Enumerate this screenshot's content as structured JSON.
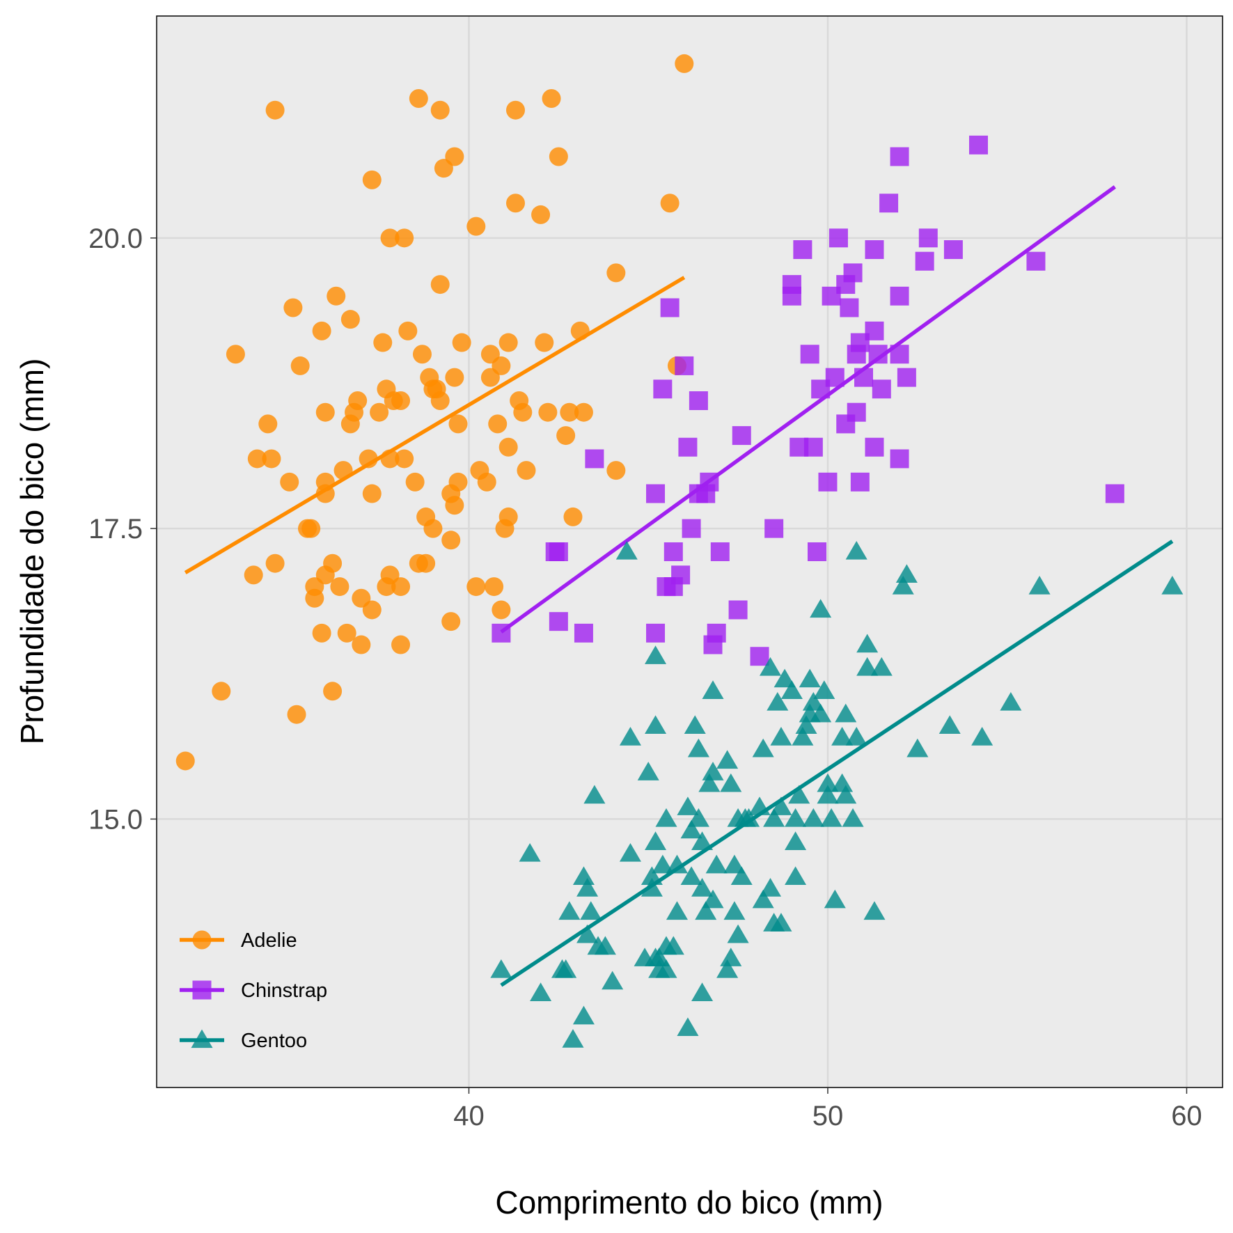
{
  "chart_data": {
    "type": "scatter",
    "title": "",
    "xlabel": "Comprimento do bico (mm)",
    "ylabel": "Profundidade do bico (mm)",
    "xlim": [
      31.3,
      61.0
    ],
    "ylim": [
      12.69,
      21.91
    ],
    "xticks": [
      40,
      50,
      60
    ],
    "xtick_labels": [
      "40",
      "50",
      "60"
    ],
    "yticks": [
      15.0,
      17.5,
      20.0
    ],
    "ytick_labels": [
      "15.0",
      "17.5",
      "20.0"
    ],
    "grid": true,
    "legend_position": "bottom-left",
    "background": "#ebebeb",
    "series": [
      {
        "name": "Adelie",
        "color": "#ff8c00",
        "marker": "circle",
        "trend": [
          [
            32.1,
            17.12
          ],
          [
            46.0,
            19.66
          ]
        ],
        "points": [
          [
            32.1,
            15.5
          ],
          [
            33.1,
            16.1
          ],
          [
            33.5,
            19.0
          ],
          [
            34.0,
            17.1
          ],
          [
            34.1,
            18.1
          ],
          [
            34.4,
            18.4
          ],
          [
            34.5,
            18.1
          ],
          [
            34.6,
            21.1
          ],
          [
            34.6,
            17.2
          ],
          [
            35.0,
            17.9
          ],
          [
            35.1,
            19.4
          ],
          [
            35.2,
            15.9
          ],
          [
            35.3,
            18.9
          ],
          [
            35.5,
            17.5
          ],
          [
            35.6,
            17.5
          ],
          [
            35.7,
            16.9
          ],
          [
            35.7,
            17.0
          ],
          [
            35.9,
            16.6
          ],
          [
            35.9,
            19.2
          ],
          [
            36.0,
            17.9
          ],
          [
            36.0,
            18.5
          ],
          [
            36.0,
            17.8
          ],
          [
            36.0,
            17.1
          ],
          [
            36.2,
            16.1
          ],
          [
            36.2,
            17.2
          ],
          [
            36.3,
            19.5
          ],
          [
            36.4,
            17.0
          ],
          [
            36.5,
            18.0
          ],
          [
            36.6,
            16.6
          ],
          [
            36.7,
            18.4
          ],
          [
            36.7,
            19.3
          ],
          [
            36.8,
            18.5
          ],
          [
            36.9,
            18.6
          ],
          [
            37.0,
            16.9
          ],
          [
            37.0,
            16.5
          ],
          [
            37.2,
            18.1
          ],
          [
            37.3,
            20.5
          ],
          [
            37.3,
            16.8
          ],
          [
            37.3,
            17.8
          ],
          [
            37.5,
            18.5
          ],
          [
            37.6,
            19.1
          ],
          [
            37.7,
            17.0
          ],
          [
            37.7,
            18.7
          ],
          [
            37.8,
            20.0
          ],
          [
            37.8,
            18.1
          ],
          [
            37.8,
            17.1
          ],
          [
            37.9,
            18.6
          ],
          [
            38.1,
            18.6
          ],
          [
            38.1,
            17.0
          ],
          [
            38.1,
            16.5
          ],
          [
            38.2,
            18.1
          ],
          [
            38.2,
            20.0
          ],
          [
            38.3,
            19.2
          ],
          [
            38.5,
            17.9
          ],
          [
            38.6,
            21.2
          ],
          [
            38.6,
            17.2
          ],
          [
            38.7,
            19.0
          ],
          [
            38.8,
            17.6
          ],
          [
            38.8,
            17.2
          ],
          [
            38.9,
            18.8
          ],
          [
            39.0,
            18.7
          ],
          [
            39.0,
            17.5
          ],
          [
            39.1,
            18.7
          ],
          [
            39.2,
            21.1
          ],
          [
            39.2,
            19.6
          ],
          [
            39.2,
            18.6
          ],
          [
            39.3,
            20.6
          ],
          [
            39.5,
            16.7
          ],
          [
            39.5,
            17.8
          ],
          [
            39.5,
            17.4
          ],
          [
            39.6,
            17.7
          ],
          [
            39.6,
            20.7
          ],
          [
            39.6,
            18.8
          ],
          [
            39.7,
            18.4
          ],
          [
            39.7,
            17.9
          ],
          [
            39.8,
            19.1
          ],
          [
            40.2,
            17.0
          ],
          [
            40.2,
            20.1
          ],
          [
            40.3,
            18.0
          ],
          [
            40.5,
            17.9
          ],
          [
            40.6,
            18.8
          ],
          [
            40.6,
            19.0
          ],
          [
            40.7,
            17.0
          ],
          [
            40.8,
            18.4
          ],
          [
            40.9,
            16.8
          ],
          [
            40.9,
            18.9
          ],
          [
            41.0,
            17.5
          ],
          [
            41.1,
            17.6
          ],
          [
            41.1,
            18.2
          ],
          [
            41.1,
            19.1
          ],
          [
            41.3,
            21.1
          ],
          [
            41.3,
            20.3
          ],
          [
            41.4,
            18.6
          ],
          [
            41.5,
            18.5
          ],
          [
            41.6,
            18.0
          ],
          [
            42.0,
            20.2
          ],
          [
            42.1,
            19.1
          ],
          [
            42.2,
            18.5
          ],
          [
            42.3,
            21.2
          ],
          [
            42.5,
            20.7
          ],
          [
            42.7,
            18.3
          ],
          [
            42.8,
            18.5
          ],
          [
            42.9,
            17.6
          ],
          [
            43.1,
            19.2
          ],
          [
            43.2,
            18.5
          ],
          [
            44.1,
            19.7
          ],
          [
            44.1,
            18.0
          ],
          [
            45.6,
            20.3
          ],
          [
            45.8,
            18.9
          ],
          [
            46.0,
            21.5
          ]
        ]
      },
      {
        "name": "Chinstrap",
        "color": "#a020f0",
        "marker": "square",
        "trend": [
          [
            40.9,
            16.61
          ],
          [
            58.0,
            20.44
          ]
        ],
        "points": [
          [
            40.9,
            16.6
          ],
          [
            42.4,
            17.3
          ],
          [
            42.5,
            16.7
          ],
          [
            42.5,
            17.3
          ],
          [
            43.2,
            16.6
          ],
          [
            43.5,
            18.1
          ],
          [
            45.2,
            17.8
          ],
          [
            45.2,
            16.6
          ],
          [
            45.4,
            18.7
          ],
          [
            45.5,
            17.0
          ],
          [
            45.6,
            19.4
          ],
          [
            45.7,
            17.0
          ],
          [
            45.7,
            17.3
          ],
          [
            45.9,
            17.1
          ],
          [
            46.0,
            18.9
          ],
          [
            46.1,
            18.2
          ],
          [
            46.2,
            17.5
          ],
          [
            46.4,
            18.6
          ],
          [
            46.4,
            17.8
          ],
          [
            46.6,
            17.8
          ],
          [
            46.7,
            17.9
          ],
          [
            46.8,
            16.5
          ],
          [
            46.9,
            16.6
          ],
          [
            47.0,
            17.3
          ],
          [
            47.5,
            16.8
          ],
          [
            47.6,
            18.3
          ],
          [
            48.1,
            16.4
          ],
          [
            48.5,
            17.5
          ],
          [
            49.0,
            19.5
          ],
          [
            49.0,
            19.6
          ],
          [
            49.2,
            18.2
          ],
          [
            49.3,
            19.9
          ],
          [
            49.5,
            19.0
          ],
          [
            49.6,
            18.2
          ],
          [
            49.7,
            17.3
          ],
          [
            49.8,
            18.7
          ],
          [
            50.1,
            19.5
          ],
          [
            50.2,
            18.8
          ],
          [
            50.3,
            20.0
          ],
          [
            50.5,
            18.4
          ],
          [
            50.6,
            19.4
          ],
          [
            50.7,
            19.7
          ],
          [
            50.8,
            19.0
          ],
          [
            50.8,
            18.5
          ],
          [
            50.9,
            17.9
          ],
          [
            51.0,
            18.8
          ],
          [
            51.3,
            19.2
          ],
          [
            51.3,
            18.2
          ],
          [
            51.4,
            19.0
          ],
          [
            51.5,
            18.7
          ],
          [
            51.7,
            20.3
          ],
          [
            52.0,
            20.7
          ],
          [
            52.0,
            18.1
          ],
          [
            52.0,
            19.0
          ],
          [
            52.2,
            18.8
          ],
          [
            52.7,
            19.8
          ],
          [
            52.8,
            20.0
          ],
          [
            53.5,
            19.9
          ],
          [
            54.2,
            20.8
          ],
          [
            55.8,
            19.8
          ],
          [
            58.0,
            17.8
          ],
          [
            50.0,
            17.9
          ],
          [
            51.3,
            19.9
          ],
          [
            50.5,
            19.6
          ],
          [
            52.0,
            19.5
          ],
          [
            50.9,
            19.1
          ]
        ]
      },
      {
        "name": "Gentoo",
        "color": "#008b8b",
        "marker": "triangle",
        "trend": [
          [
            40.9,
            13.57
          ],
          [
            59.6,
            17.39
          ]
        ],
        "points": [
          [
            40.9,
            13.7
          ],
          [
            41.7,
            14.7
          ],
          [
            42.0,
            13.5
          ],
          [
            42.6,
            13.7
          ],
          [
            42.7,
            13.7
          ],
          [
            42.8,
            14.2
          ],
          [
            42.9,
            13.1
          ],
          [
            43.2,
            14.5
          ],
          [
            43.2,
            13.3
          ],
          [
            43.3,
            14.0
          ],
          [
            43.3,
            14.4
          ],
          [
            43.4,
            14.2
          ],
          [
            43.5,
            15.2
          ],
          [
            43.6,
            13.9
          ],
          [
            43.8,
            13.9
          ],
          [
            44.0,
            13.6
          ],
          [
            44.4,
            17.3
          ],
          [
            44.5,
            14.7
          ],
          [
            44.5,
            15.7
          ],
          [
            44.9,
            13.8
          ],
          [
            45.0,
            15.4
          ],
          [
            45.1,
            14.5
          ],
          [
            45.1,
            14.4
          ],
          [
            45.2,
            13.8
          ],
          [
            45.2,
            14.8
          ],
          [
            45.2,
            15.8
          ],
          [
            45.2,
            16.4
          ],
          [
            45.3,
            13.7
          ],
          [
            45.3,
            13.8
          ],
          [
            45.4,
            14.6
          ],
          [
            45.5,
            13.7
          ],
          [
            45.5,
            15.0
          ],
          [
            45.5,
            13.9
          ],
          [
            45.7,
            13.9
          ],
          [
            45.8,
            14.6
          ],
          [
            45.8,
            14.2
          ],
          [
            46.1,
            15.1
          ],
          [
            46.1,
            13.2
          ],
          [
            46.2,
            14.5
          ],
          [
            46.2,
            14.9
          ],
          [
            46.3,
            15.8
          ],
          [
            46.4,
            15.6
          ],
          [
            46.4,
            15.0
          ],
          [
            46.5,
            14.4
          ],
          [
            46.5,
            14.8
          ],
          [
            46.5,
            13.5
          ],
          [
            46.6,
            14.2
          ],
          [
            46.7,
            15.3
          ],
          [
            46.8,
            14.3
          ],
          [
            46.8,
            15.4
          ],
          [
            46.8,
            16.1
          ],
          [
            46.9,
            14.6
          ],
          [
            47.2,
            13.7
          ],
          [
            47.2,
            15.5
          ],
          [
            47.3,
            13.8
          ],
          [
            47.3,
            15.3
          ],
          [
            47.4,
            14.6
          ],
          [
            47.4,
            14.2
          ],
          [
            47.5,
            14.0
          ],
          [
            47.5,
            15.0
          ],
          [
            47.6,
            14.5
          ],
          [
            47.7,
            15.0
          ],
          [
            47.8,
            15.0
          ],
          [
            48.1,
            15.1
          ],
          [
            48.2,
            14.3
          ],
          [
            48.2,
            15.6
          ],
          [
            48.4,
            14.4
          ],
          [
            48.4,
            16.3
          ],
          [
            48.5,
            15.0
          ],
          [
            48.5,
            14.1
          ],
          [
            48.6,
            16.0
          ],
          [
            48.7,
            14.1
          ],
          [
            48.7,
            15.1
          ],
          [
            48.7,
            15.7
          ],
          [
            48.8,
            16.2
          ],
          [
            49.0,
            16.1
          ],
          [
            49.1,
            14.8
          ],
          [
            49.1,
            14.5
          ],
          [
            49.1,
            15.0
          ],
          [
            49.2,
            15.2
          ],
          [
            49.3,
            15.7
          ],
          [
            49.4,
            15.8
          ],
          [
            49.5,
            15.9
          ],
          [
            49.5,
            16.2
          ],
          [
            49.6,
            15.0
          ],
          [
            49.6,
            16.0
          ],
          [
            49.8,
            15.9
          ],
          [
            49.8,
            16.8
          ],
          [
            49.9,
            16.1
          ],
          [
            50.0,
            15.2
          ],
          [
            50.0,
            15.3
          ],
          [
            50.1,
            15.0
          ],
          [
            50.2,
            14.3
          ],
          [
            50.4,
            15.3
          ],
          [
            50.4,
            15.7
          ],
          [
            50.5,
            15.2
          ],
          [
            50.5,
            15.9
          ],
          [
            50.7,
            15.0
          ],
          [
            50.8,
            15.7
          ],
          [
            50.8,
            17.3
          ],
          [
            51.1,
            16.3
          ],
          [
            51.1,
            16.5
          ],
          [
            51.3,
            14.2
          ],
          [
            51.5,
            16.3
          ],
          [
            52.1,
            17.0
          ],
          [
            52.2,
            17.1
          ],
          [
            52.5,
            15.6
          ],
          [
            53.4,
            15.8
          ],
          [
            54.3,
            15.7
          ],
          [
            55.1,
            16.0
          ],
          [
            55.9,
            17.0
          ],
          [
            59.6,
            17.0
          ]
        ]
      }
    ]
  }
}
